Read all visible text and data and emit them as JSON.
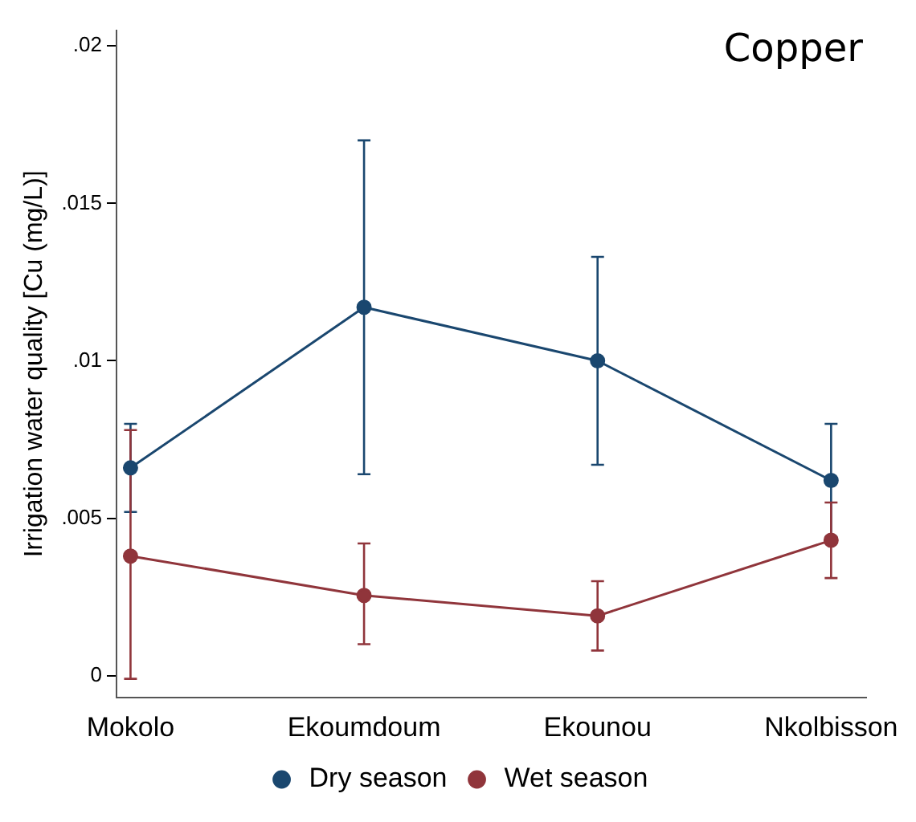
{
  "chart_data": {
    "type": "line",
    "title": "Copper",
    "ylabel": "Irrigation water quality [Cu (mg/L)]",
    "categories": [
      "Mokolo",
      "Ekoumdoum",
      "Ekounou",
      "Nkolbisson"
    ],
    "series": [
      {
        "name": "Dry season",
        "color": "#1a476f",
        "values": [
          0.0066,
          0.0117,
          0.01,
          0.0062
        ],
        "errors": [
          [
            0.0052,
            0.008
          ],
          [
            0.0064,
            0.017
          ],
          [
            0.0067,
            0.0133
          ],
          [
            0.0044,
            0.008
          ]
        ]
      },
      {
        "name": "Wet season",
        "color": "#90353b",
        "values": [
          0.0038,
          0.00255,
          0.0019,
          0.0043
        ],
        "errors": [
          [
            -0.0001,
            0.0078
          ],
          [
            0.001,
            0.0042
          ],
          [
            0.0008,
            0.003
          ],
          [
            0.0031,
            0.0055
          ]
        ]
      }
    ],
    "ylim": [
      -0.0007,
      0.0205
    ],
    "yticks": [
      {
        "value": 0,
        "label": "0"
      },
      {
        "value": 0.005,
        "label": ".005"
      },
      {
        "value": 0.01,
        "label": ".01"
      },
      {
        "value": 0.015,
        "label": ".015"
      },
      {
        "value": 0.02,
        "label": ".02"
      }
    ],
    "grid": false,
    "legend": "bottom",
    "marker": "circle",
    "line_style": "solid"
  }
}
